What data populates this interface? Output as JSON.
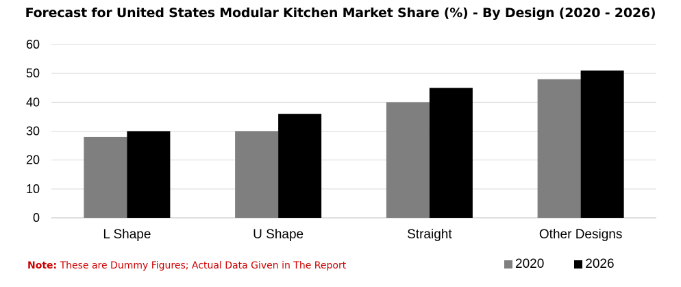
{
  "chart_data": {
    "type": "bar",
    "title": "Forecast for United States Modular Kitchen Market Share (%) - By Design (2020 - 2026)",
    "categories": [
      "L Shape",
      "U Shape",
      "Straight",
      "Other Designs"
    ],
    "series": [
      {
        "name": "2020",
        "values": [
          28,
          30,
          40,
          48
        ],
        "color": "#7f7f7f"
      },
      {
        "name": "2026",
        "values": [
          30,
          36,
          45,
          51
        ],
        "color": "#000000"
      }
    ],
    "ylim": [
      0,
      60
    ],
    "yticks": [
      0,
      10,
      20,
      30,
      40,
      50,
      60
    ],
    "grid": true,
    "legend_position": "bottom-right"
  },
  "note": {
    "lead": "Note:",
    "text": " These are Dummy Figures; Actual Data Given in The Report"
  }
}
